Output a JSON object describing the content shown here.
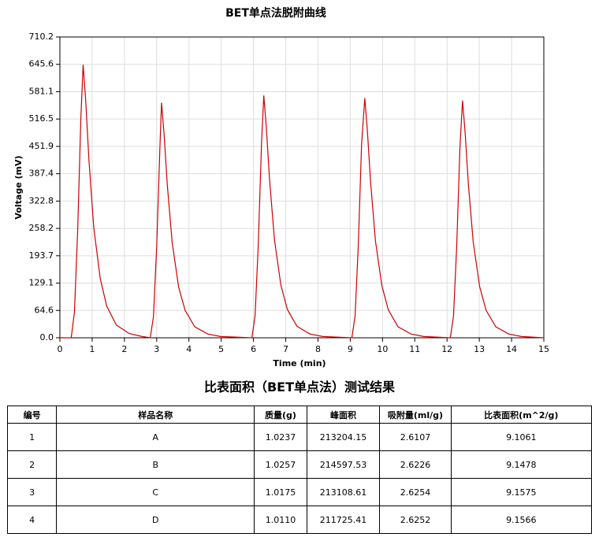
{
  "chart_data": {
    "type": "line",
    "title": "BET单点法脱附曲线",
    "x_label": "Time (min)",
    "y_label": "Voltage (mV)",
    "x": [
      0,
      0.3,
      0.35,
      0.45,
      0.55,
      0.65,
      0.72,
      0.8,
      0.9,
      1.05,
      1.25,
      1.45,
      1.75,
      2.15,
      2.55,
      2.8,
      2.9,
      3.0,
      3.1,
      3.15,
      3.23,
      3.33,
      3.48,
      3.68,
      3.88,
      4.18,
      4.58,
      4.98,
      5.95,
      6.05,
      6.15,
      6.25,
      6.32,
      6.4,
      6.5,
      6.65,
      6.85,
      7.05,
      7.35,
      7.75,
      8.15,
      9.05,
      9.15,
      9.25,
      9.35,
      9.45,
      9.53,
      9.63,
      9.78,
      9.98,
      10.18,
      10.48,
      10.88,
      11.28,
      12.1,
      12.2,
      12.3,
      12.4,
      12.48,
      12.56,
      12.66,
      12.81,
      13.01,
      13.21,
      13.51,
      13.91,
      14.31,
      15
    ],
    "series": [
      {
        "name": "Voltage",
        "color": "#cc0000",
        "values": [
          0,
          0,
          0,
          60,
          250,
          520,
          645,
          560,
          420,
          260,
          140,
          75,
          30,
          10,
          3,
          0,
          50,
          215,
          450,
          555,
          480,
          360,
          225,
          120,
          65,
          26,
          9,
          3,
          0,
          52,
          222,
          460,
          572,
          495,
          372,
          232,
          124,
          67,
          27,
          9,
          3,
          0,
          52,
          220,
          455,
          566,
          490,
          368,
          229,
          123,
          66,
          26,
          9,
          3,
          0,
          51,
          217,
          450,
          560,
          485,
          364,
          227,
          121,
          65,
          26,
          9,
          3,
          0
        ]
      }
    ],
    "xlim": [
      0,
      15
    ],
    "xticks": [
      0,
      1,
      2,
      3,
      4,
      5,
      6,
      7,
      8,
      9,
      10,
      11,
      12,
      13,
      14,
      15
    ],
    "ylim": [
      0,
      710.2
    ],
    "yticks": [
      {
        "value": 0,
        "label": "0.0"
      },
      64.6,
      129.1,
      193.7,
      258.2,
      322.8,
      387.4,
      451.9,
      516.5,
      581.1,
      645.6,
      710.2
    ],
    "grid": true
  },
  "table": {
    "title": "比表面积（BET单点法）测试结果",
    "header": [
      "编号",
      "样品名称",
      "质量(g)",
      "峰面积",
      "吸附量(ml/g)",
      "比表面积(m^2/g)"
    ],
    "rows": [
      [
        "1",
        "A",
        "1.0237",
        "213204.15",
        "2.6107",
        "9.1061"
      ],
      [
        "2",
        "B",
        "1.0257",
        "214597.53",
        "2.6226",
        "9.1478"
      ],
      [
        "3",
        "C",
        "1.0175",
        "213108.61",
        "2.6254",
        "9.1575"
      ],
      [
        "4",
        "D",
        "1.0110",
        "211725.41",
        "2.6252",
        "9.1566"
      ]
    ]
  }
}
